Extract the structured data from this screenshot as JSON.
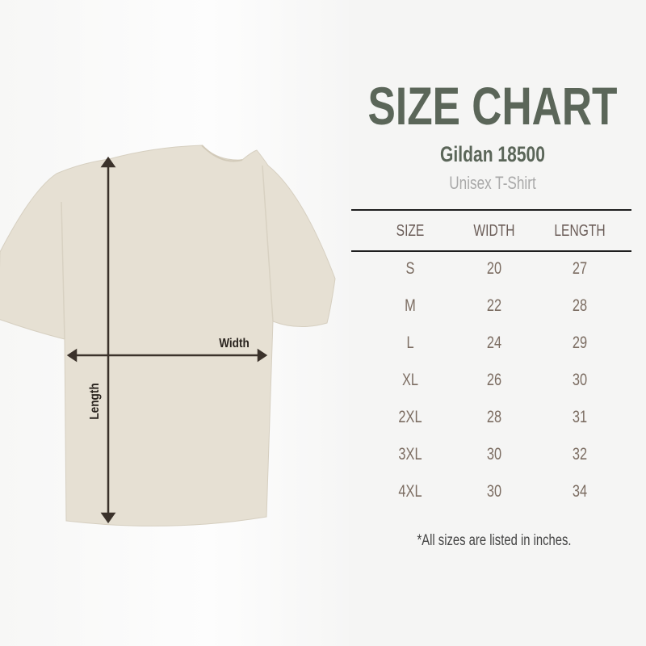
{
  "header": {
    "title": "SIZE CHART",
    "model": "Gildan 18500",
    "subtitle": "Unisex T-Shirt"
  },
  "diagram": {
    "width_label": "Width",
    "length_label": "Length",
    "shirt_color": "#e6e0d3",
    "arrow_color": "#3b322b"
  },
  "table": {
    "columns": [
      "SIZE",
      "WIDTH",
      "LENGTH"
    ],
    "rows": [
      [
        "S",
        "20",
        "27"
      ],
      [
        "M",
        "22",
        "28"
      ],
      [
        "L",
        "24",
        "29"
      ],
      [
        "XL",
        "26",
        "30"
      ],
      [
        "2XL",
        "28",
        "31"
      ],
      [
        "3XL",
        "30",
        "32"
      ],
      [
        "4XL",
        "30",
        "34"
      ]
    ]
  },
  "footnote": "*All sizes are listed in inches.",
  "colors": {
    "title": "#5b6659",
    "values": "#7b6c61"
  }
}
